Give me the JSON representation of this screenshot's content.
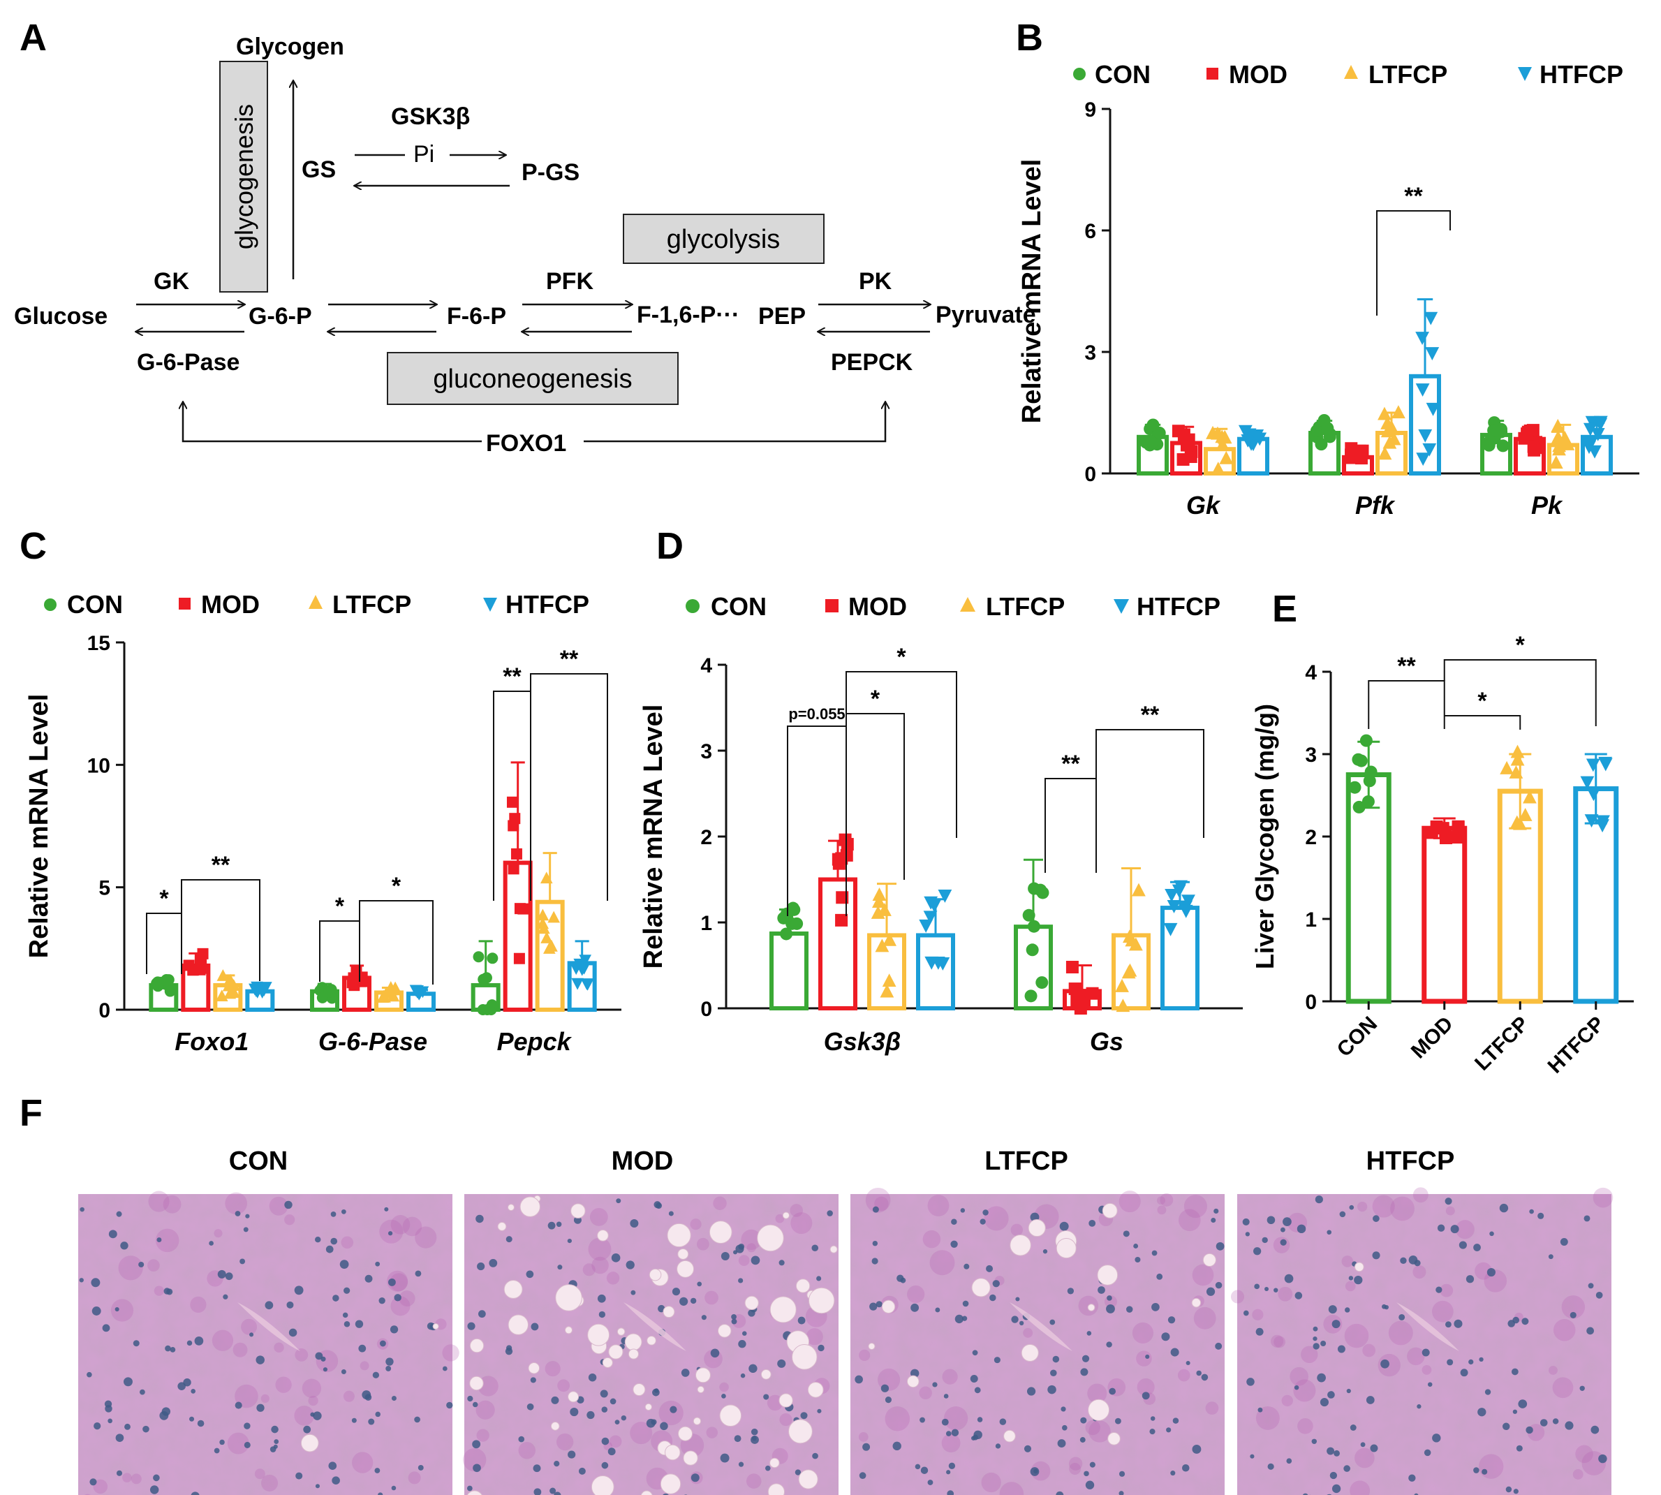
{
  "colors": {
    "CON": "#3aa935",
    "MOD": "#ee1c24",
    "LTFCP": "#f9be3e",
    "HTFCP": "#1b9ed8",
    "axis": "#111111",
    "box_fill": "#d9d9d9",
    "tissue_base": "#c9a3c8",
    "tissue_pink": "#b25ab0",
    "nucleus": "#3f5a86",
    "droplet": "#f6e8ee"
  },
  "panels": {
    "A": "A",
    "B": "B",
    "C": "C",
    "D": "D",
    "E": "E",
    "F": "F"
  },
  "pathway": {
    "glycogen": "Glycogen",
    "glycogenesis": "glycogenesis",
    "gsk3b": "GSK3β",
    "pi": "Pi",
    "gs": "GS",
    "pgs": "P-GS",
    "glycolysis": "glycolysis",
    "gk": "GK",
    "pfk": "PFK",
    "pk": "PK",
    "glucose": "Glucose",
    "g6p": "G-6-P",
    "f6p": "F-6-P",
    "f16p": "F-1,6-P···",
    "pep": "PEP",
    "pyruvate": "Pyruvate",
    "g6pase": "G-6-Pase",
    "pepck": "PEPCK",
    "gluconeogenesis": "gluconeogenesis",
    "foxo1": "FOXO1"
  },
  "legend": {
    "CON": "CON",
    "MOD": "MOD",
    "LTFCP": "LTFCP",
    "HTFCP": "HTFCP"
  },
  "chart_data": [
    {
      "id": "B",
      "type": "bar",
      "ylabel": "Relative mRNA Level",
      "ylim": [
        0,
        9
      ],
      "yticks": [
        "0",
        "3",
        "6",
        "9"
      ],
      "categories": [
        "Gk",
        "Pfk",
        "Pk"
      ],
      "series": [
        {
          "name": "CON",
          "values": [
            0.9,
            1.0,
            0.95
          ],
          "sd": [
            0.3,
            0.3,
            0.35
          ]
        },
        {
          "name": "MOD",
          "values": [
            0.75,
            0.4,
            0.85
          ],
          "sd": [
            0.4,
            0.2,
            0.3
          ]
        },
        {
          "name": "LTFCP",
          "values": [
            0.6,
            1.0,
            0.7
          ],
          "sd": [
            0.5,
            0.5,
            0.5
          ]
        },
        {
          "name": "HTFCP",
          "values": [
            0.85,
            2.4,
            0.9
          ],
          "sd": [
            0.2,
            1.9,
            0.35
          ]
        }
      ],
      "annotations": [
        "**"
      ]
    },
    {
      "id": "C",
      "type": "bar",
      "ylabel": "Relative mRNA Level",
      "ylim": [
        0,
        15
      ],
      "yticks": [
        "0",
        "5",
        "10",
        "15"
      ],
      "categories": [
        "Foxo1",
        "G-6-Pase",
        "Pepck"
      ],
      "series": [
        {
          "name": "CON",
          "values": [
            1.0,
            0.75,
            1.0
          ],
          "sd": [
            0.3,
            0.3,
            1.8
          ]
        },
        {
          "name": "MOD",
          "values": [
            1.8,
            1.3,
            6.0
          ],
          "sd": [
            0.5,
            0.5,
            4.1
          ]
        },
        {
          "name": "LTFCP",
          "values": [
            1.0,
            0.7,
            4.4
          ],
          "sd": [
            0.4,
            0.2,
            2.0
          ]
        },
        {
          "name": "HTFCP",
          "values": [
            0.75,
            0.65,
            1.9
          ],
          "sd": [
            0.2,
            0.15,
            0.9
          ]
        }
      ],
      "annotations": [
        "*",
        "**",
        "*",
        "*",
        "**",
        "**"
      ]
    },
    {
      "id": "D",
      "type": "bar",
      "ylabel": "Relative mRNA Level",
      "ylim": [
        0,
        4
      ],
      "yticks": [
        "0",
        "1",
        "2",
        "3",
        "4"
      ],
      "categories": [
        "Gsk3β",
        "Gs"
      ],
      "series": [
        {
          "name": "CON",
          "values": [
            0.87,
            0.95
          ],
          "sd": [
            0.28,
            0.78
          ]
        },
        {
          "name": "MOD",
          "values": [
            1.5,
            0.2
          ],
          "sd": [
            0.45,
            0.3
          ]
        },
        {
          "name": "LTFCP",
          "values": [
            0.85,
            0.85
          ],
          "sd": [
            0.6,
            0.78
          ]
        },
        {
          "name": "HTFCP",
          "values": [
            0.85,
            1.17
          ],
          "sd": [
            0.42,
            0.3
          ]
        }
      ],
      "annotations": [
        "p=0.055",
        "*",
        "*",
        "**",
        "**"
      ]
    },
    {
      "id": "E",
      "type": "bar",
      "ylabel": "Liver Glycogen (mg/g)",
      "ylim": [
        0,
        4
      ],
      "yticks": [
        "0",
        "1",
        "2",
        "3",
        "4"
      ],
      "categories": [
        "CON",
        "MOD",
        "LTFCP",
        "HTFCP"
      ],
      "values": [
        2.75,
        2.1,
        2.55,
        2.58
      ],
      "sd": [
        0.4,
        0.12,
        0.45,
        0.42
      ],
      "annotations": [
        "**",
        "*",
        "*"
      ]
    }
  ],
  "histology": {
    "labels": [
      "CON",
      "MOD",
      "LTFCP",
      "HTFCP"
    ]
  }
}
